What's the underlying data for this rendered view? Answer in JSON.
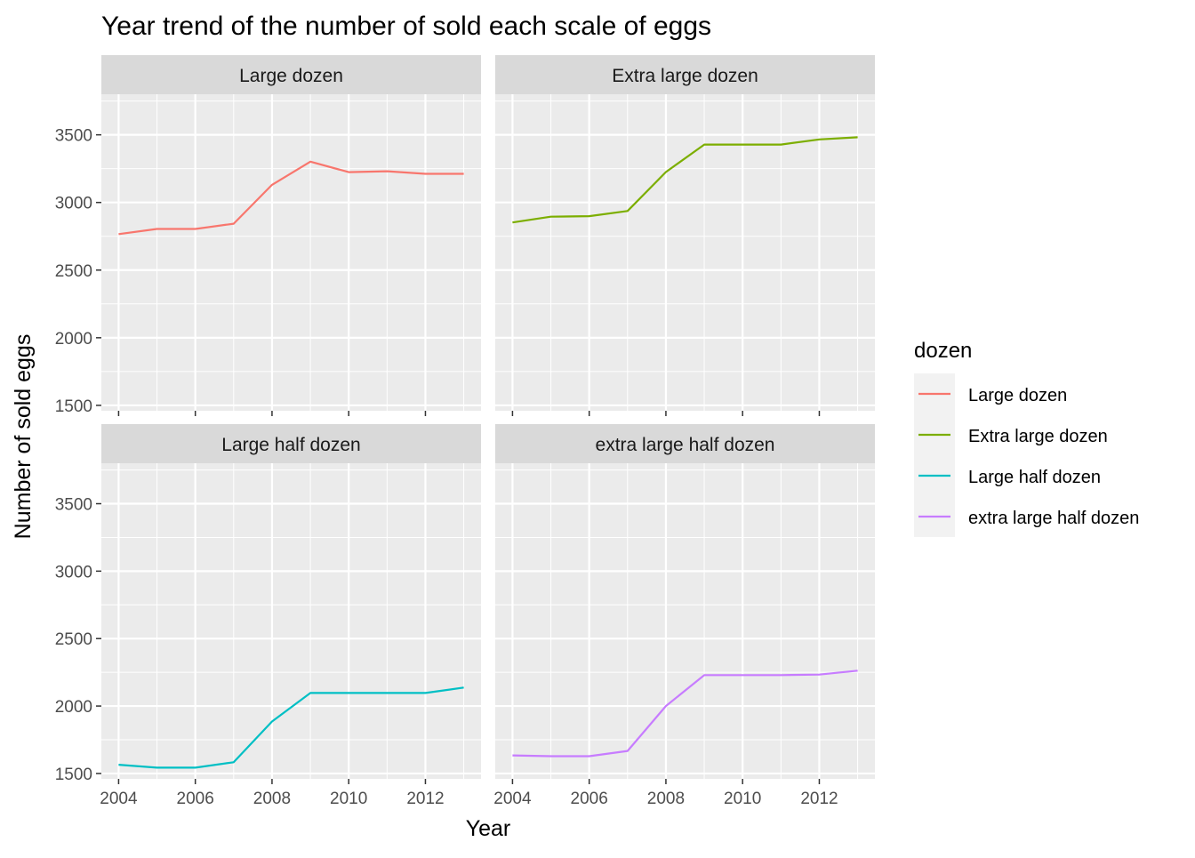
{
  "chart_data": {
    "type": "line",
    "title": "Year trend of the number of sold each scale of eggs",
    "xlabel": "Year",
    "ylabel": "Number of sold eggs",
    "x": [
      2004,
      2005,
      2006,
      2007,
      2008,
      2009,
      2010,
      2011,
      2012,
      2013
    ],
    "xlim": [
      2003.55,
      2013.45
    ],
    "ylim": [
      1460,
      3800
    ],
    "x_ticks": [
      2004,
      2006,
      2008,
      2010,
      2012
    ],
    "x_tick_labels": [
      "2004",
      "2006",
      "2008",
      "2010",
      "2012"
    ],
    "y_ticks": [
      1500,
      2000,
      2500,
      3000,
      3500
    ],
    "y_tick_labels": [
      "1500",
      "2000",
      "2500",
      "3000",
      "3500"
    ],
    "grid": true,
    "layout": "facet 2x2",
    "legend": {
      "title": "dozen",
      "placement": "right"
    },
    "series": [
      {
        "name": "Large dozen",
        "color": "#F8766D",
        "values": [
          2766,
          2804,
          2804,
          2843,
          3130,
          3302,
          3224,
          3231,
          3212,
          3212
        ]
      },
      {
        "name": "Extra large dozen",
        "color": "#7CAE00",
        "values": [
          2852,
          2895,
          2899,
          2937,
          3225,
          3428,
          3428,
          3428,
          3466,
          3482
        ]
      },
      {
        "name": "Large half dozen",
        "color": "#00BFC4",
        "values": [
          1565,
          1543,
          1543,
          1583,
          1885,
          2097,
          2097,
          2097,
          2097,
          2137
        ]
      },
      {
        "name": "extra large half dozen",
        "color": "#C77CFF",
        "values": [
          1634,
          1628,
          1628,
          1667,
          2000,
          2229,
          2229,
          2229,
          2233,
          2262
        ]
      }
    ]
  }
}
